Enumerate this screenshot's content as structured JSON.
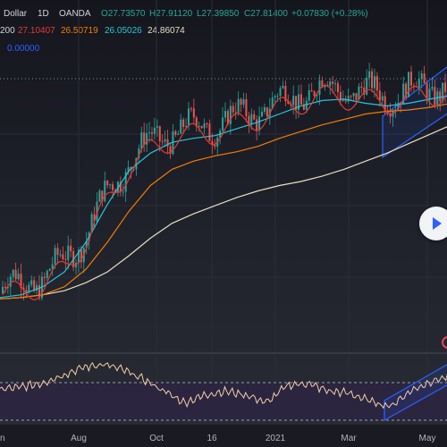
{
  "header": {
    "symbol": "Dollar",
    "interval": "1D",
    "source": "OANDA",
    "ohlc": {
      "o": "O27.73570",
      "h": "H27.91120",
      "l": "L27.39850",
      "c": "C27.81400",
      "chg": "+0.07830 (+0.28%)"
    },
    "ma_row": {
      "prefix": "200",
      "v1": "27.10407",
      "v2": "26.50719",
      "v3": "26.05026",
      "v4": "24.86074"
    },
    "osc_value": "0.00000"
  },
  "colors": {
    "up": "#26a69a",
    "down": "#ef5350",
    "ma_fast": "#e53935",
    "ma_mid": "#f57c00",
    "ma_slow": "#26c6da",
    "ma_long": "#e8dfc0",
    "channel": "#2962ff",
    "osc_line": "#f5d0a9",
    "osc_band": "#4a3d6b",
    "header_text": "#d1d4dc"
  },
  "chart_data": {
    "type": "candlestick",
    "title": "",
    "price_range": [
      9.5,
      31.5
    ],
    "x_labels": [
      "n",
      "Aug",
      "Oct",
      "16",
      "2021",
      "Mar",
      "May"
    ],
    "series": [
      {
        "name": "200",
        "values": [
          12.0,
          12.1,
          12.3,
          12.6,
          13.2,
          14.0,
          15.2,
          16.5,
          17.6,
          18.3,
          18.9,
          19.5,
          20.0,
          20.4,
          20.7,
          21.1,
          21.6,
          22.2,
          22.8,
          23.5,
          24.2,
          24.9
        ]
      },
      {
        "name": "",
        "values": [
          12.1,
          12.3,
          12.9,
          14.0,
          16.2,
          19.0,
          21.5,
          22.8,
          23.6,
          23.9,
          24.1,
          24.6,
          25.1,
          25.7,
          26.3,
          26.7,
          26.8,
          26.5,
          26.3,
          26.5,
          26.8,
          27.1
        ]
      },
      {
        "name": "",
        "values": [
          12.0,
          12.1,
          12.3,
          12.9,
          14.2,
          16.2,
          18.5,
          20.4,
          21.6,
          22.2,
          22.6,
          22.9,
          23.3,
          23.9,
          24.4,
          24.9,
          25.3,
          25.7,
          25.9,
          26.0,
          26.2,
          26.5
        ]
      }
    ],
    "oscillator": {
      "levels": [
        30,
        70
      ],
      "values": [
        52,
        54,
        58,
        66,
        74,
        78,
        72,
        62,
        50,
        38,
        46,
        50,
        46,
        38,
        56,
        58,
        50,
        48,
        40,
        34,
        50,
        60,
        66
      ]
    },
    "grid": true
  }
}
